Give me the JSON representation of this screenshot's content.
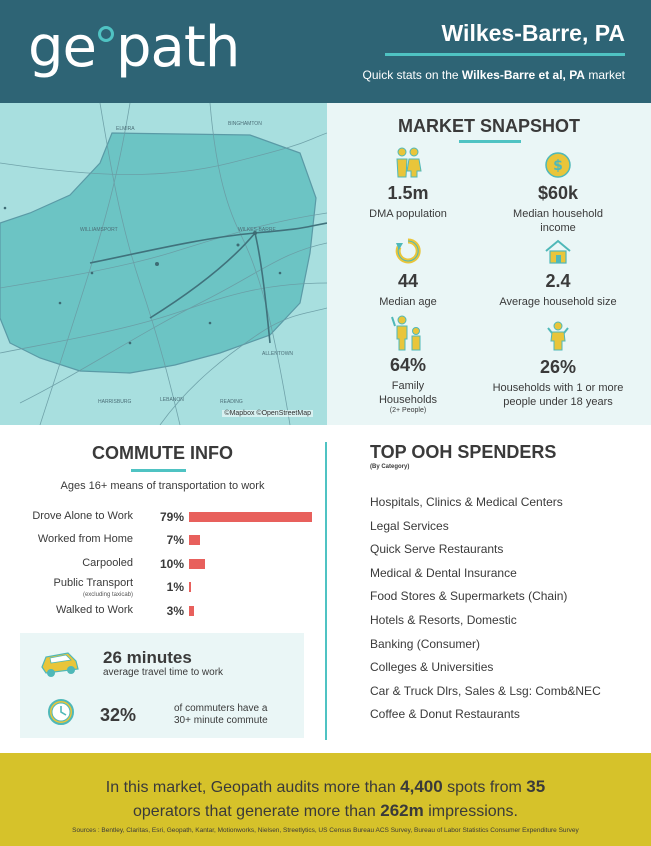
{
  "header": {
    "logo_pre": "ge",
    "logo_post": "path",
    "title": "Wilkes-Barre, PA",
    "subtitle_pre": "Quick stats on the ",
    "subtitle_bold": "Wilkes-Barre et al, PA",
    "subtitle_post": " market"
  },
  "map": {
    "credit": "©Mapbox ©OpenStreetMap",
    "places": [
      "ELMIRA",
      "BINGHAMTON",
      "WILLIAMSPORT",
      "WILKES-BARRE",
      "ALLENTOWN",
      "HARRISBURG",
      "LEBANON",
      "READING"
    ]
  },
  "snapshot": {
    "title": "MARKET SNAPSHOT",
    "stats": [
      {
        "value": "1.5m",
        "label": "DMA population",
        "note": "",
        "icon": "family-icon"
      },
      {
        "value": "$60k",
        "label": "Median household income",
        "note": "",
        "icon": "dollar-coin-icon"
      },
      {
        "value": "44",
        "label": "Median age",
        "note": "",
        "icon": "cycle-arrow-icon"
      },
      {
        "value": "2.4",
        "label": "Average household size",
        "note": "",
        "icon": "house-icon"
      },
      {
        "value": "64%",
        "label": "Family Households",
        "note": "(2+ People)",
        "icon": "parent-child-icon"
      },
      {
        "value": "26%",
        "label": "Households with 1 or more people under 18 years",
        "note": "",
        "icon": "child-icon"
      }
    ]
  },
  "commute": {
    "title": "COMMUTE INFO",
    "subtitle": "Ages 16+ means of transportation to work",
    "rows": [
      {
        "label": "Drove Alone to Work",
        "note": "",
        "pct": "79%",
        "value": 79
      },
      {
        "label": "Worked from Home",
        "note": "",
        "pct": "7%",
        "value": 7
      },
      {
        "label": "Carpooled",
        "note": "",
        "pct": "10%",
        "value": 10
      },
      {
        "label": "Public Transport",
        "note": "(excluding taxicab)",
        "pct": "1%",
        "value": 1
      },
      {
        "label": "Walked to Work",
        "note": "",
        "pct": "3%",
        "value": 3
      }
    ],
    "travel_time": "26 minutes",
    "travel_label": "average travel time to work",
    "long_pct": "32%",
    "long_label_1": "of commuters have a",
    "long_label_2": "30+ minute commute"
  },
  "spenders": {
    "title": "TOP OOH SPENDERS",
    "subtitle": "(By Category)",
    "items": [
      "Hospitals, Clinics & Medical Centers",
      "Legal Services",
      "Quick Serve Restaurants",
      "Medical & Dental Insurance",
      "Food Stores & Supermarkets (Chain)",
      "Hotels & Resorts, Domestic",
      "Banking (Consumer)",
      "Colleges & Universities",
      "Car & Truck Dlrs, Sales & Lsg: Comb&NEC",
      "Coffee & Donut Restaurants"
    ]
  },
  "footer": {
    "line1_pre": "In this market, Geopath audits more than ",
    "spots": "4,400",
    "line1_mid": " spots from ",
    "operators": "35",
    "line2_pre": "operators that generate more than ",
    "impressions": "262m",
    "line2_post": " impressions.",
    "sources": "Sources : Bentley, Claritas, Esri, Geopath, Kantar, Motionworks, Nielsen, Streetlytics, US Census Bureau ACS Survey, Bureau of Labor Statistics Consumer Expenditure Survey"
  },
  "colors": {
    "header_bg": "#2e6475",
    "accent": "#4fc3c3",
    "bar": "#e8605c",
    "footer_bg": "#d6c22a",
    "panel_bg": "#eaf6f6",
    "icon_yellow": "#e9c53a",
    "icon_teal": "#4fb8b8"
  }
}
